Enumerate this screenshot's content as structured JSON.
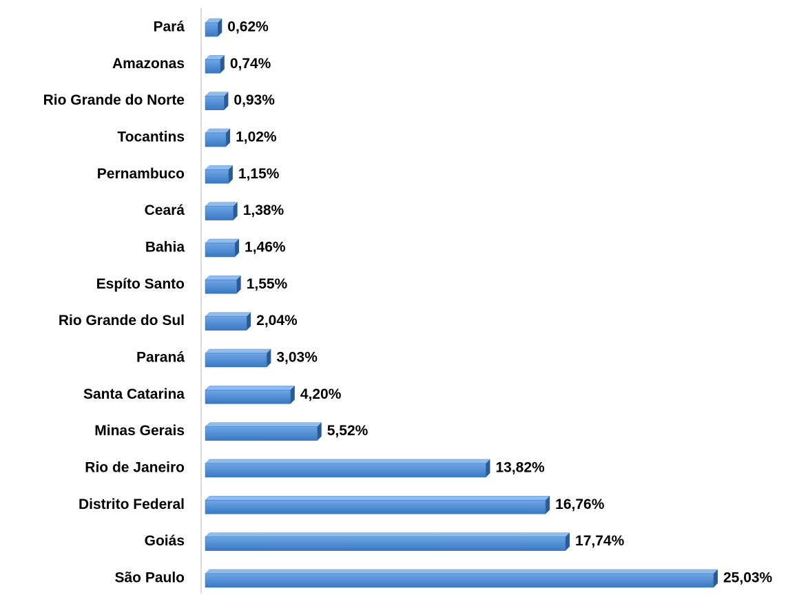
{
  "chart_data": {
    "type": "bar",
    "orientation": "horizontal",
    "categories": [
      "Pará",
      "Amazonas",
      "Rio Grande do Norte",
      "Tocantins",
      "Pernambuco",
      "Ceará",
      "Bahia",
      "Espíto Santo",
      "Rio Grande do Sul",
      "Paraná",
      "Santa Catarina",
      "Minas Gerais",
      "Rio de Janeiro",
      "Distrito Federal",
      "Goiás",
      "São Paulo"
    ],
    "values": [
      0.62,
      0.74,
      0.93,
      1.02,
      1.15,
      1.38,
      1.46,
      1.55,
      2.04,
      3.03,
      4.2,
      5.52,
      13.82,
      16.76,
      17.74,
      25.03
    ],
    "value_labels": [
      "0,62%",
      "0,74%",
      "0,93%",
      "1,02%",
      "1,15%",
      "1,38%",
      "1,46%",
      "1,55%",
      "2,04%",
      "3,03%",
      "4,20%",
      "5,52%",
      "13,82%",
      "16,76%",
      "17,74%",
      "25,03%"
    ],
    "color": "#4a8ad4"
  }
}
